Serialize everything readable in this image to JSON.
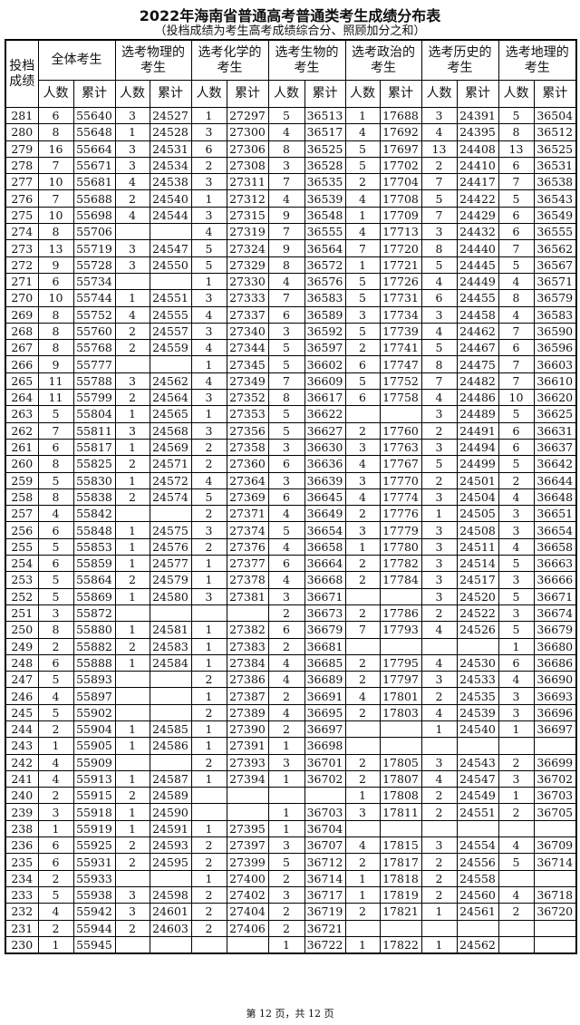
{
  "title": "2022年海南省普通高考普通类考生成绩分布表",
  "subtitle": "（投档成绩为考生高考成绩综合分、照顾加分之和）",
  "table": {
    "score_header": "投档成绩",
    "groups": [
      "全体考生",
      "选考物理的考生",
      "选考化学的考生",
      "选考生物的考生",
      "选考政治的考生",
      "选考历史的考生",
      "选考地理的考生"
    ],
    "sub_headers": [
      "人数",
      "累计"
    ],
    "rows": [
      [
        "281",
        "6",
        "55640",
        "3",
        "24527",
        "1",
        "27297",
        "5",
        "36513",
        "1",
        "17688",
        "3",
        "24391",
        "5",
        "36504"
      ],
      [
        "280",
        "8",
        "55648",
        "1",
        "24528",
        "3",
        "27300",
        "4",
        "36517",
        "4",
        "17692",
        "4",
        "24395",
        "8",
        "36512"
      ],
      [
        "279",
        "16",
        "55664",
        "3",
        "24531",
        "6",
        "27306",
        "8",
        "36525",
        "5",
        "17697",
        "13",
        "24408",
        "13",
        "36525"
      ],
      [
        "278",
        "7",
        "55671",
        "3",
        "24534",
        "2",
        "27308",
        "3",
        "36528",
        "5",
        "17702",
        "2",
        "24410",
        "6",
        "36531"
      ],
      [
        "277",
        "10",
        "55681",
        "4",
        "24538",
        "3",
        "27311",
        "7",
        "36535",
        "2",
        "17704",
        "7",
        "24417",
        "7",
        "36538"
      ],
      [
        "276",
        "7",
        "55688",
        "2",
        "24540",
        "1",
        "27312",
        "4",
        "36539",
        "4",
        "17708",
        "5",
        "24422",
        "5",
        "36543"
      ],
      [
        "275",
        "10",
        "55698",
        "4",
        "24544",
        "3",
        "27315",
        "9",
        "36548",
        "1",
        "17709",
        "7",
        "24429",
        "6",
        "36549"
      ],
      [
        "274",
        "8",
        "55706",
        "",
        "",
        "4",
        "27319",
        "7",
        "36555",
        "4",
        "17713",
        "3",
        "24432",
        "6",
        "36555"
      ],
      [
        "273",
        "13",
        "55719",
        "3",
        "24547",
        "5",
        "27324",
        "9",
        "36564",
        "7",
        "17720",
        "8",
        "24440",
        "7",
        "36562"
      ],
      [
        "272",
        "9",
        "55728",
        "3",
        "24550",
        "5",
        "27329",
        "8",
        "36572",
        "1",
        "17721",
        "5",
        "24445",
        "5",
        "36567"
      ],
      [
        "271",
        "6",
        "55734",
        "",
        "",
        "1",
        "27330",
        "4",
        "36576",
        "5",
        "17726",
        "4",
        "24449",
        "4",
        "36571"
      ],
      [
        "270",
        "10",
        "55744",
        "1",
        "24551",
        "3",
        "27333",
        "7",
        "36583",
        "5",
        "17731",
        "6",
        "24455",
        "8",
        "36579"
      ],
      [
        "269",
        "8",
        "55752",
        "4",
        "24555",
        "4",
        "27337",
        "6",
        "36589",
        "3",
        "17734",
        "3",
        "24458",
        "4",
        "36583"
      ],
      [
        "268",
        "8",
        "55760",
        "2",
        "24557",
        "3",
        "27340",
        "3",
        "36592",
        "5",
        "17739",
        "4",
        "24462",
        "7",
        "36590"
      ],
      [
        "267",
        "8",
        "55768",
        "2",
        "24559",
        "4",
        "27344",
        "5",
        "36597",
        "2",
        "17741",
        "5",
        "24467",
        "6",
        "36596"
      ],
      [
        "266",
        "9",
        "55777",
        "",
        "",
        "1",
        "27345",
        "5",
        "36602",
        "6",
        "17747",
        "8",
        "24475",
        "7",
        "36603"
      ],
      [
        "265",
        "11",
        "55788",
        "3",
        "24562",
        "4",
        "27349",
        "7",
        "36609",
        "5",
        "17752",
        "7",
        "24482",
        "7",
        "36610"
      ],
      [
        "264",
        "11",
        "55799",
        "2",
        "24564",
        "3",
        "27352",
        "8",
        "36617",
        "6",
        "17758",
        "4",
        "24486",
        "10",
        "36620"
      ],
      [
        "263",
        "5",
        "55804",
        "1",
        "24565",
        "1",
        "27353",
        "5",
        "36622",
        "",
        "",
        "3",
        "24489",
        "5",
        "36625"
      ],
      [
        "262",
        "7",
        "55811",
        "3",
        "24568",
        "3",
        "27356",
        "5",
        "36627",
        "2",
        "17760",
        "2",
        "24491",
        "6",
        "36631"
      ],
      [
        "261",
        "6",
        "55817",
        "1",
        "24569",
        "2",
        "27358",
        "3",
        "36630",
        "3",
        "17763",
        "3",
        "24494",
        "6",
        "36637"
      ],
      [
        "260",
        "8",
        "55825",
        "2",
        "24571",
        "2",
        "27360",
        "6",
        "36636",
        "4",
        "17767",
        "5",
        "24499",
        "5",
        "36642"
      ],
      [
        "259",
        "5",
        "55830",
        "1",
        "24572",
        "4",
        "27364",
        "3",
        "36639",
        "3",
        "17770",
        "2",
        "24501",
        "2",
        "36644"
      ],
      [
        "258",
        "8",
        "55838",
        "2",
        "24574",
        "5",
        "27369",
        "6",
        "36645",
        "4",
        "17774",
        "3",
        "24504",
        "4",
        "36648"
      ],
      [
        "257",
        "4",
        "55842",
        "",
        "",
        "2",
        "27371",
        "4",
        "36649",
        "2",
        "17776",
        "1",
        "24505",
        "3",
        "36651"
      ],
      [
        "256",
        "6",
        "55848",
        "1",
        "24575",
        "3",
        "27374",
        "5",
        "36654",
        "3",
        "17779",
        "3",
        "24508",
        "3",
        "36654"
      ],
      [
        "255",
        "5",
        "55853",
        "1",
        "24576",
        "2",
        "27376",
        "4",
        "36658",
        "1",
        "17780",
        "3",
        "24511",
        "4",
        "36658"
      ],
      [
        "254",
        "6",
        "55859",
        "1",
        "24577",
        "1",
        "27377",
        "6",
        "36664",
        "2",
        "17782",
        "3",
        "24514",
        "5",
        "36663"
      ],
      [
        "253",
        "5",
        "55864",
        "2",
        "24579",
        "1",
        "27378",
        "4",
        "36668",
        "2",
        "17784",
        "3",
        "24517",
        "3",
        "36666"
      ],
      [
        "252",
        "5",
        "55869",
        "1",
        "24580",
        "3",
        "27381",
        "3",
        "36671",
        "",
        "",
        "3",
        "24520",
        "5",
        "36671"
      ],
      [
        "251",
        "3",
        "55872",
        "",
        "",
        "",
        "",
        "2",
        "36673",
        "2",
        "17786",
        "2",
        "24522",
        "3",
        "36674"
      ],
      [
        "250",
        "8",
        "55880",
        "1",
        "24581",
        "1",
        "27382",
        "6",
        "36679",
        "7",
        "17793",
        "4",
        "24526",
        "5",
        "36679"
      ],
      [
        "249",
        "2",
        "55882",
        "2",
        "24583",
        "1",
        "27383",
        "2",
        "36681",
        "",
        "",
        "",
        "",
        "1",
        "36680"
      ],
      [
        "248",
        "6",
        "55888",
        "1",
        "24584",
        "1",
        "27384",
        "4",
        "36685",
        "2",
        "17795",
        "4",
        "24530",
        "6",
        "36686"
      ],
      [
        "247",
        "5",
        "55893",
        "",
        "",
        "2",
        "27386",
        "4",
        "36689",
        "2",
        "17797",
        "3",
        "24533",
        "4",
        "36690"
      ],
      [
        "246",
        "4",
        "55897",
        "",
        "",
        "1",
        "27387",
        "2",
        "36691",
        "4",
        "17801",
        "2",
        "24535",
        "3",
        "36693"
      ],
      [
        "245",
        "5",
        "55902",
        "",
        "",
        "2",
        "27389",
        "4",
        "36695",
        "2",
        "17803",
        "4",
        "24539",
        "3",
        "36696"
      ],
      [
        "244",
        "2",
        "55904",
        "1",
        "24585",
        "1",
        "27390",
        "2",
        "36697",
        "",
        "",
        "1",
        "24540",
        "1",
        "36697"
      ],
      [
        "243",
        "1",
        "55905",
        "1",
        "24586",
        "1",
        "27391",
        "1",
        "36698",
        "",
        "",
        "",
        "",
        "",
        ""
      ],
      [
        "242",
        "4",
        "55909",
        "",
        "",
        "2",
        "27393",
        "3",
        "36701",
        "2",
        "17805",
        "3",
        "24543",
        "2",
        "36699"
      ],
      [
        "241",
        "4",
        "55913",
        "1",
        "24587",
        "1",
        "27394",
        "1",
        "36702",
        "2",
        "17807",
        "4",
        "24547",
        "3",
        "36702"
      ],
      [
        "240",
        "2",
        "55915",
        "2",
        "24589",
        "",
        "",
        "",
        "",
        "1",
        "17808",
        "2",
        "24549",
        "1",
        "36703"
      ],
      [
        "239",
        "3",
        "55918",
        "1",
        "24590",
        "",
        "",
        "1",
        "36703",
        "3",
        "17811",
        "2",
        "24551",
        "2",
        "36705"
      ],
      [
        "238",
        "1",
        "55919",
        "1",
        "24591",
        "1",
        "27395",
        "1",
        "36704",
        "",
        "",
        "",
        "",
        "",
        ""
      ],
      [
        "236",
        "6",
        "55925",
        "2",
        "24593",
        "2",
        "27397",
        "3",
        "36707",
        "4",
        "17815",
        "3",
        "24554",
        "4",
        "36709"
      ],
      [
        "235",
        "6",
        "55931",
        "2",
        "24595",
        "2",
        "27399",
        "5",
        "36712",
        "2",
        "17817",
        "2",
        "24556",
        "5",
        "36714"
      ],
      [
        "234",
        "2",
        "55933",
        "",
        "",
        "1",
        "27400",
        "2",
        "36714",
        "1",
        "17818",
        "2",
        "24558",
        "",
        ""
      ],
      [
        "233",
        "5",
        "55938",
        "3",
        "24598",
        "2",
        "27402",
        "3",
        "36717",
        "1",
        "17819",
        "2",
        "24560",
        "4",
        "36718"
      ],
      [
        "232",
        "4",
        "55942",
        "3",
        "24601",
        "2",
        "27404",
        "2",
        "36719",
        "2",
        "17821",
        "1",
        "24561",
        "2",
        "36720"
      ],
      [
        "231",
        "2",
        "55944",
        "2",
        "24603",
        "2",
        "27406",
        "2",
        "36721",
        "",
        "",
        "",
        "",
        "",
        ""
      ],
      [
        "230",
        "1",
        "55945",
        "",
        "",
        "",
        "",
        "1",
        "36722",
        "1",
        "17822",
        "1",
        "24562",
        "",
        ""
      ]
    ]
  },
  "footer": "第 12 页，共 12 页"
}
